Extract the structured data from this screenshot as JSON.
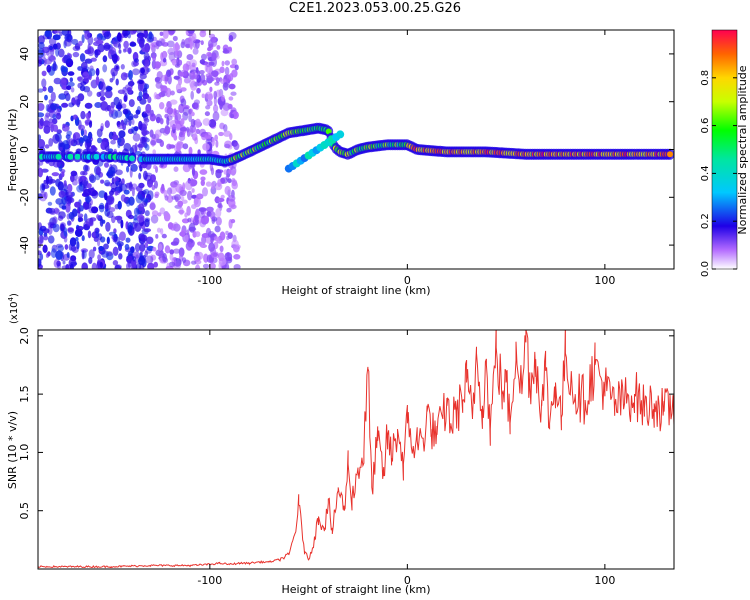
{
  "page": {
    "title": "C2E1.2023.053.00.25.G26"
  },
  "chart_data": [
    {
      "type": "heatmap",
      "xlabel": "Height of straight line (km)",
      "ylabel": "Frequency (Hz)",
      "xlim": [
        -187,
        135
      ],
      "ylim": [
        -50,
        50
      ],
      "xticks": [
        -100,
        0,
        100
      ],
      "yticks": [
        -40,
        -20,
        0,
        20,
        40
      ],
      "xtick_labels": [
        "-100",
        "0",
        "100"
      ],
      "ytick_labels": [
        "-40",
        "-20",
        "0",
        "20",
        "40"
      ],
      "grid": false,
      "ridge": {
        "x": [
          -180,
          -165,
          -150,
          -135,
          -120,
          -110,
          -100,
          -92,
          -88,
          -80,
          -70,
          -60,
          -52,
          -45,
          -40,
          -37,
          -34,
          -30,
          -25,
          -20,
          -10,
          0,
          5,
          20,
          40,
          60,
          80,
          100,
          120,
          135
        ],
        "y": [
          -3,
          -3,
          -3,
          -4,
          -4,
          -4,
          -4,
          -5,
          -4,
          -1,
          3,
          7,
          8,
          9,
          8,
          1,
          -1,
          -2,
          0,
          1,
          2,
          2,
          0,
          -1,
          -1,
          -2,
          -2,
          -2,
          -2,
          -2
        ]
      },
      "colorbar": {
        "label": "Normalized spectral amplitude",
        "range": [
          0,
          1
        ],
        "ticks": [
          0.0,
          0.2,
          0.4,
          0.6,
          0.8
        ],
        "tick_labels": [
          "0.0",
          "0.2",
          "0.4",
          "0.6",
          "0.8"
        ]
      }
    },
    {
      "type": "line",
      "xlabel": "Height of straight line (km)",
      "ylabel": "SNR (10 * v/v)",
      "multiplier": "(x10",
      "multiplier_exp": "4",
      "multiplier_close": ")",
      "xlim": [
        -187,
        135
      ],
      "ylim": [
        0,
        2.05
      ],
      "xticks": [
        -100,
        0,
        100
      ],
      "xtick_labels": [
        "-100",
        "0",
        "100"
      ],
      "yticks": [
        0.5,
        1.0,
        1.5,
        2.0
      ],
      "ytick_labels": [
        "0.5",
        "1.0",
        "1.5",
        "2.0"
      ],
      "grid": false,
      "series": [
        {
          "color": "#e8322c",
          "x": [
            -187,
            -170,
            -150,
            -130,
            -110,
            -100,
            -95,
            -90,
            -85,
            -80,
            -75,
            -70,
            -65,
            -60,
            -57,
            -55,
            -52,
            -50,
            -47,
            -45,
            -42,
            -40,
            -38,
            -35,
            -32,
            -30,
            -28,
            -25,
            -22,
            -20,
            -18,
            -15,
            -12,
            -10,
            -8,
            -5,
            -2,
            0,
            3,
            5,
            8,
            10,
            12,
            15,
            18,
            20,
            22,
            25,
            28,
            30,
            33,
            35,
            38,
            40,
            42,
            45,
            48,
            50,
            52,
            55,
            58,
            60,
            62,
            65,
            68,
            70,
            72,
            75,
            78,
            80,
            85,
            90,
            95,
            100,
            105,
            110,
            115,
            120,
            125,
            130,
            135
          ],
          "values": [
            0.02,
            0.02,
            0.02,
            0.03,
            0.03,
            0.04,
            0.05,
            0.04,
            0.05,
            0.05,
            0.06,
            0.06,
            0.08,
            0.12,
            0.3,
            0.55,
            0.15,
            0.08,
            0.25,
            0.45,
            0.35,
            0.6,
            0.3,
            0.7,
            0.5,
            0.9,
            0.6,
            0.85,
            1.0,
            1.72,
            0.7,
            1.1,
            0.8,
            1.15,
            0.95,
            1.2,
            0.9,
            1.25,
            1.05,
            1.1,
            1.1,
            1.35,
            1.2,
            1.15,
            1.3,
            1.4,
            1.25,
            1.35,
            1.45,
            1.6,
            1.3,
            1.85,
            1.4,
            1.75,
            1.2,
            1.9,
            1.5,
            1.6,
            1.25,
            1.95,
            1.5,
            2.05,
            1.6,
            1.8,
            1.4,
            1.7,
            1.25,
            1.6,
            1.3,
            1.85,
            1.5,
            1.45,
            1.75,
            1.55,
            1.4,
            1.45,
            1.5,
            1.38,
            1.42,
            1.35,
            1.4
          ]
        }
      ]
    }
  ]
}
